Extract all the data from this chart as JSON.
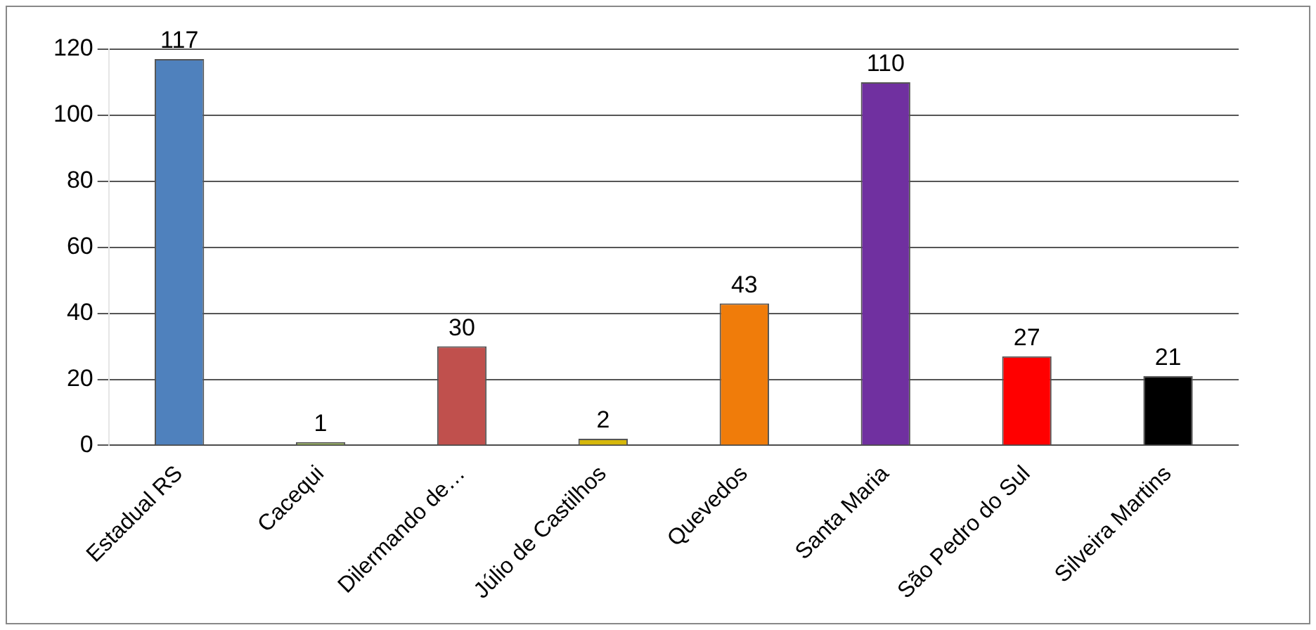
{
  "chart_data": {
    "type": "bar",
    "categories": [
      "Estadual RS",
      "Cacequi",
      "Dilermando de…",
      "Júlio de Castilhos",
      "Quevedos",
      "Santa Maria",
      "São Pedro do Sul",
      "Silveira Martins"
    ],
    "values": [
      117,
      1,
      30,
      2,
      43,
      110,
      27,
      21
    ],
    "colors": [
      "#4f81bd",
      "#9bbb59",
      "#c0504d",
      "#d6b80a",
      "#f07c0a",
      "#7030a0",
      "#ff0000",
      "#000000"
    ],
    "ylim": [
      0,
      120
    ],
    "yticks": [
      0,
      20,
      40,
      60,
      80,
      100,
      120
    ],
    "grid": "y",
    "legend": false,
    "data_labels": true
  }
}
